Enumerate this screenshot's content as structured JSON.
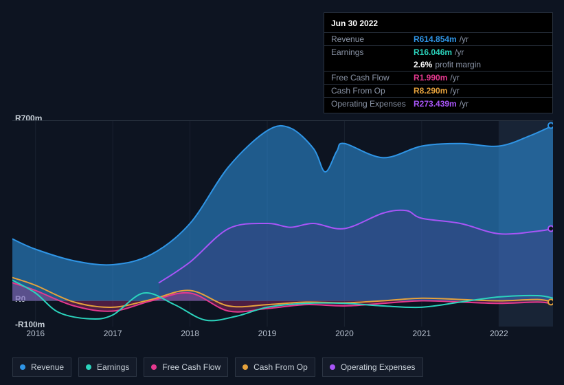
{
  "bg": "#0d1421",
  "tooltip": {
    "date": "Jun 30 2022",
    "rows": [
      {
        "label": "Revenue",
        "value": "R614.854m",
        "unit": "/yr",
        "color": "#2f95e6",
        "border": true
      },
      {
        "label": "Earnings",
        "value": "R16.046m",
        "unit": "/yr",
        "color": "#2bd4bd",
        "border": true
      },
      {
        "label": "",
        "value": "2.6%",
        "unit": "profit margin",
        "color": "#ffffff",
        "border": false
      },
      {
        "label": "Free Cash Flow",
        "value": "R1.990m",
        "unit": "/yr",
        "color": "#e6398f",
        "border": true
      },
      {
        "label": "Cash From Op",
        "value": "R8.290m",
        "unit": "/yr",
        "color": "#e6a23c",
        "border": true
      },
      {
        "label": "Operating Expenses",
        "value": "R273.439m",
        "unit": "/yr",
        "color": "#a855f7",
        "border": true
      }
    ]
  },
  "chart": {
    "type": "area-line",
    "ylim": [
      -100,
      700
    ],
    "ylabels": [
      {
        "y": 700,
        "text": "R700m"
      },
      {
        "y": 0,
        "text": "R0"
      },
      {
        "y": -100,
        "text": "-R100m"
      }
    ],
    "xrange": [
      2015.7,
      2022.7
    ],
    "xticks": [
      2016,
      2017,
      2018,
      2019,
      2020,
      2021,
      2022
    ],
    "highlight_from": 2022,
    "highlight_color": "#1a2638",
    "grid_color": "#1a2230",
    "zero_line_color": "#2a3340",
    "series": [
      {
        "name": "Revenue",
        "color": "#2f95e6",
        "area_opacity": 0.55,
        "width": 2,
        "points": [
          [
            2015.7,
            240
          ],
          [
            2016,
            200
          ],
          [
            2016.5,
            155
          ],
          [
            2017,
            140
          ],
          [
            2017.5,
            180
          ],
          [
            2018,
            300
          ],
          [
            2018.5,
            520
          ],
          [
            2019,
            660
          ],
          [
            2019.3,
            670
          ],
          [
            2019.6,
            590
          ],
          [
            2019.75,
            500
          ],
          [
            2019.9,
            580
          ],
          [
            2020,
            610
          ],
          [
            2020.5,
            555
          ],
          [
            2021,
            600
          ],
          [
            2021.5,
            610
          ],
          [
            2022,
            600
          ],
          [
            2022.4,
            640
          ],
          [
            2022.7,
            680
          ]
        ]
      },
      {
        "name": "Operating Expenses",
        "color": "#a855f7",
        "area_opacity": 0.3,
        "area_color": "#4a2f7a",
        "width": 2,
        "start_x": 2017.6,
        "points": [
          [
            2017.6,
            70
          ],
          [
            2018,
            150
          ],
          [
            2018.5,
            280
          ],
          [
            2019,
            300
          ],
          [
            2019.3,
            285
          ],
          [
            2019.6,
            300
          ],
          [
            2020,
            280
          ],
          [
            2020.5,
            340
          ],
          [
            2020.8,
            350
          ],
          [
            2021,
            320
          ],
          [
            2021.5,
            300
          ],
          [
            2022,
            260
          ],
          [
            2022.5,
            270
          ],
          [
            2022.7,
            280
          ]
        ]
      },
      {
        "name": "Cash From Op",
        "color": "#e6a23c",
        "area_opacity": 0,
        "width": 2,
        "points": [
          [
            2015.7,
            90
          ],
          [
            2016,
            60
          ],
          [
            2016.5,
            -5
          ],
          [
            2017,
            -25
          ],
          [
            2017.5,
            5
          ],
          [
            2018,
            40
          ],
          [
            2018.5,
            -20
          ],
          [
            2019,
            -15
          ],
          [
            2019.5,
            -5
          ],
          [
            2020,
            -8
          ],
          [
            2020.5,
            0
          ],
          [
            2021,
            10
          ],
          [
            2021.5,
            5
          ],
          [
            2022,
            0
          ],
          [
            2022.5,
            5
          ],
          [
            2022.7,
            -5
          ]
        ]
      },
      {
        "name": "Free Cash Flow",
        "color": "#e6398f",
        "area_opacity": 0.3,
        "width": 2,
        "points": [
          [
            2015.7,
            70
          ],
          [
            2016,
            40
          ],
          [
            2016.5,
            -20
          ],
          [
            2017,
            -40
          ],
          [
            2017.5,
            0
          ],
          [
            2018,
            30
          ],
          [
            2018.5,
            -40
          ],
          [
            2019,
            -30
          ],
          [
            2019.5,
            -15
          ],
          [
            2020,
            -20
          ],
          [
            2020.5,
            -10
          ],
          [
            2021,
            0
          ],
          [
            2021.5,
            -5
          ],
          [
            2022,
            -10
          ],
          [
            2022.5,
            -5
          ],
          [
            2022.7,
            -12
          ]
        ]
      },
      {
        "name": "Earnings",
        "color": "#2bd4bd",
        "area_opacity": 0,
        "width": 2,
        "points": [
          [
            2015.7,
            80
          ],
          [
            2016,
            30
          ],
          [
            2016.3,
            -45
          ],
          [
            2016.7,
            -70
          ],
          [
            2017,
            -55
          ],
          [
            2017.4,
            30
          ],
          [
            2017.8,
            -15
          ],
          [
            2018.2,
            -75
          ],
          [
            2018.6,
            -60
          ],
          [
            2019,
            -25
          ],
          [
            2019.5,
            -10
          ],
          [
            2020,
            -10
          ],
          [
            2020.5,
            -20
          ],
          [
            2021,
            -25
          ],
          [
            2021.5,
            -5
          ],
          [
            2022,
            15
          ],
          [
            2022.5,
            20
          ],
          [
            2022.7,
            10
          ]
        ]
      }
    ]
  },
  "legend": {
    "items": [
      {
        "label": "Revenue",
        "color": "#2f95e6",
        "name": "legend-revenue"
      },
      {
        "label": "Earnings",
        "color": "#2bd4bd",
        "name": "legend-earnings"
      },
      {
        "label": "Free Cash Flow",
        "color": "#e6398f",
        "name": "legend-free-cash-flow"
      },
      {
        "label": "Cash From Op",
        "color": "#e6a23c",
        "name": "legend-cash-from-op"
      },
      {
        "label": "Operating Expenses",
        "color": "#a855f7",
        "name": "legend-operating-expenses"
      }
    ]
  }
}
